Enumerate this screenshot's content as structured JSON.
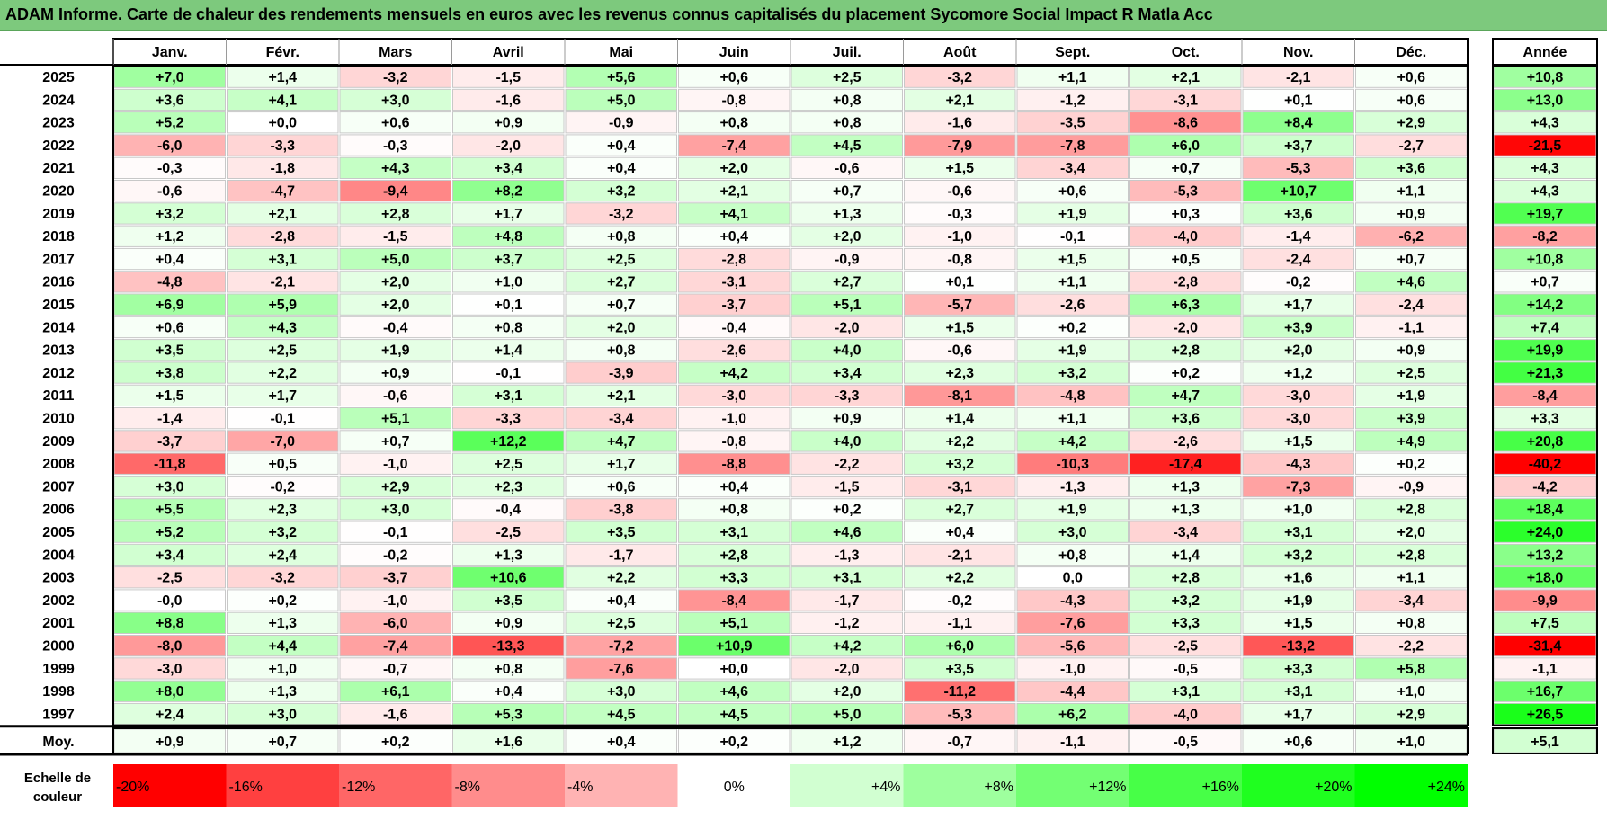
{
  "title": "ADAM Informe. Carte de chaleur des rendements mensuels en euros avec les revenus connus capitalisés du placement Sycomore Social Impact R Matla Acc",
  "chart_data": {
    "type": "heatmap",
    "title": "ADAM Informe. Carte de chaleur des rendements mensuels en euros avec les revenus connus capitalisés du placement Sycomore Social Impact R Matla Acc",
    "columns": [
      "Janv.",
      "Févr.",
      "Mars",
      "Avril",
      "Mai",
      "Juin",
      "Juil.",
      "Août",
      "Sept.",
      "Oct.",
      "Nov.",
      "Déc."
    ],
    "year_column": "Année",
    "rows": [
      {
        "year": "2025",
        "values": [
          "+7,0",
          "+1,4",
          "-3,2",
          "-1,5",
          "+5,6",
          "+0,6",
          "+2,5",
          "-3,2",
          "+1,1",
          "+2,1",
          "-2,1",
          "+0,6"
        ],
        "annual": "+10,8"
      },
      {
        "year": "2024",
        "values": [
          "+3,6",
          "+4,1",
          "+3,0",
          "-1,6",
          "+5,0",
          "-0,8",
          "+0,8",
          "+2,1",
          "-1,2",
          "-3,1",
          "+0,1",
          "+0,6"
        ],
        "annual": "+13,0"
      },
      {
        "year": "2023",
        "values": [
          "+5,2",
          "+0,0",
          "+0,6",
          "+0,9",
          "-0,9",
          "+0,8",
          "+0,8",
          "-1,6",
          "-3,5",
          "-8,6",
          "+8,4",
          "+2,9"
        ],
        "annual": "+4,3"
      },
      {
        "year": "2022",
        "values": [
          "-6,0",
          "-3,3",
          "-0,3",
          "-2,0",
          "+0,4",
          "-7,4",
          "+4,5",
          "-7,9",
          "-7,8",
          "+6,0",
          "+3,7",
          "-2,7"
        ],
        "annual": "-21,5"
      },
      {
        "year": "2021",
        "values": [
          "-0,3",
          "-1,8",
          "+4,3",
          "+3,4",
          "+0,4",
          "+2,0",
          "-0,6",
          "+1,5",
          "-3,4",
          "+0,7",
          "-5,3",
          "+3,6"
        ],
        "annual": "+4,3"
      },
      {
        "year": "2020",
        "values": [
          "-0,6",
          "-4,7",
          "-9,4",
          "+8,2",
          "+3,2",
          "+2,1",
          "+0,7",
          "-0,6",
          "+0,6",
          "-5,3",
          "+10,7",
          "+1,1"
        ],
        "annual": "+4,3"
      },
      {
        "year": "2019",
        "values": [
          "+3,2",
          "+2,1",
          "+2,8",
          "+1,7",
          "-3,2",
          "+4,1",
          "+1,3",
          "-0,3",
          "+1,9",
          "+0,3",
          "+3,6",
          "+0,9"
        ],
        "annual": "+19,7"
      },
      {
        "year": "2018",
        "values": [
          "+1,2",
          "-2,8",
          "-1,5",
          "+4,8",
          "+0,8",
          "+0,4",
          "+2,0",
          "-1,0",
          "-0,1",
          "-4,0",
          "-1,4",
          "-6,2"
        ],
        "annual": "-8,2"
      },
      {
        "year": "2017",
        "values": [
          "+0,4",
          "+3,1",
          "+5,0",
          "+3,7",
          "+2,5",
          "-2,8",
          "-0,9",
          "-0,8",
          "+1,5",
          "+0,5",
          "-2,4",
          "+0,7"
        ],
        "annual": "+10,8"
      },
      {
        "year": "2016",
        "values": [
          "-4,8",
          "-2,1",
          "+2,0",
          "+1,0",
          "+2,7",
          "-3,1",
          "+2,7",
          "+0,1",
          "+1,1",
          "-2,8",
          "-0,2",
          "+4,6"
        ],
        "annual": "+0,7"
      },
      {
        "year": "2015",
        "values": [
          "+6,9",
          "+5,9",
          "+2,0",
          "+0,1",
          "+0,7",
          "-3,7",
          "+5,1",
          "-5,7",
          "-2,6",
          "+6,3",
          "+1,7",
          "-2,4"
        ],
        "annual": "+14,2"
      },
      {
        "year": "2014",
        "values": [
          "+0,6",
          "+4,3",
          "-0,4",
          "+0,8",
          "+2,0",
          "-0,4",
          "-2,0",
          "+1,5",
          "+0,2",
          "-2,0",
          "+3,9",
          "-1,1"
        ],
        "annual": "+7,4"
      },
      {
        "year": "2013",
        "values": [
          "+3,5",
          "+2,5",
          "+1,9",
          "+1,4",
          "+0,8",
          "-2,6",
          "+4,0",
          "-0,6",
          "+1,9",
          "+2,8",
          "+2,0",
          "+0,9"
        ],
        "annual": "+19,9"
      },
      {
        "year": "2012",
        "values": [
          "+3,8",
          "+2,2",
          "+0,9",
          "-0,1",
          "-3,9",
          "+4,2",
          "+3,4",
          "+2,3",
          "+3,2",
          "+0,2",
          "+1,2",
          "+2,5"
        ],
        "annual": "+21,3"
      },
      {
        "year": "2011",
        "values": [
          "+1,5",
          "+1,7",
          "-0,6",
          "+3,1",
          "+2,1",
          "-3,0",
          "-3,3",
          "-8,1",
          "-4,8",
          "+4,7",
          "-3,0",
          "+1,9"
        ],
        "annual": "-8,4"
      },
      {
        "year": "2010",
        "values": [
          "-1,4",
          "-0,1",
          "+5,1",
          "-3,3",
          "-3,4",
          "-1,0",
          "+0,9",
          "+1,4",
          "+1,1",
          "+3,6",
          "-3,0",
          "+3,9"
        ],
        "annual": "+3,3"
      },
      {
        "year": "2009",
        "values": [
          "-3,7",
          "-7,0",
          "+0,7",
          "+12,2",
          "+4,7",
          "-0,8",
          "+4,0",
          "+2,2",
          "+4,2",
          "-2,6",
          "+1,5",
          "+4,9"
        ],
        "annual": "+20,8"
      },
      {
        "year": "2008",
        "values": [
          "-11,8",
          "+0,5",
          "-1,0",
          "+2,5",
          "+1,7",
          "-8,8",
          "-2,2",
          "+3,2",
          "-10,3",
          "-17,4",
          "-4,3",
          "+0,2"
        ],
        "annual": "-40,2"
      },
      {
        "year": "2007",
        "values": [
          "+3,0",
          "-0,2",
          "+2,9",
          "+2,3",
          "+0,6",
          "+0,4",
          "-1,5",
          "-3,1",
          "-1,3",
          "+1,3",
          "-7,3",
          "-0,9"
        ],
        "annual": "-4,2"
      },
      {
        "year": "2006",
        "values": [
          "+5,5",
          "+2,3",
          "+3,0",
          "-0,4",
          "-3,8",
          "+0,8",
          "+0,2",
          "+2,7",
          "+1,9",
          "+1,3",
          "+1,0",
          "+2,8"
        ],
        "annual": "+18,4"
      },
      {
        "year": "2005",
        "values": [
          "+5,2",
          "+3,2",
          "-0,1",
          "-2,5",
          "+3,5",
          "+3,1",
          "+4,6",
          "+0,4",
          "+3,0",
          "-3,4",
          "+3,1",
          "+2,0"
        ],
        "annual": "+24,0"
      },
      {
        "year": "2004",
        "values": [
          "+3,4",
          "+2,4",
          "-0,2",
          "+1,3",
          "-1,7",
          "+2,8",
          "-1,3",
          "-2,1",
          "+0,8",
          "+1,4",
          "+3,2",
          "+2,8"
        ],
        "annual": "+13,2"
      },
      {
        "year": "2003",
        "values": [
          "-2,5",
          "-3,2",
          "-3,7",
          "+10,6",
          "+2,2",
          "+3,3",
          "+3,1",
          "+2,2",
          "0,0",
          "+2,8",
          "+1,6",
          "+1,1"
        ],
        "annual": "+18,0"
      },
      {
        "year": "2002",
        "values": [
          "-0,0",
          "+0,2",
          "-1,0",
          "+3,5",
          "+0,4",
          "-8,4",
          "-1,7",
          "-0,2",
          "-4,3",
          "+3,2",
          "+1,9",
          "-3,4"
        ],
        "annual": "-9,9"
      },
      {
        "year": "2001",
        "values": [
          "+8,8",
          "+1,3",
          "-6,0",
          "+0,9",
          "+2,5",
          "+5,1",
          "-1,2",
          "-1,1",
          "-7,6",
          "+3,3",
          "+1,5",
          "+0,8"
        ],
        "annual": "+7,5"
      },
      {
        "year": "2000",
        "values": [
          "-8,0",
          "+4,4",
          "-7,4",
          "-13,3",
          "-7,2",
          "+10,9",
          "+4,2",
          "+6,0",
          "-5,6",
          "-2,5",
          "-13,2",
          "-2,2"
        ],
        "annual": "-31,4"
      },
      {
        "year": "1999",
        "values": [
          "-3,0",
          "+1,0",
          "-0,7",
          "+0,8",
          "-7,6",
          "+0,0",
          "-2,0",
          "+3,5",
          "-1,0",
          "-0,5",
          "+3,3",
          "+5,8"
        ],
        "annual": "-1,1"
      },
      {
        "year": "1998",
        "values": [
          "+8,0",
          "+1,3",
          "+6,1",
          "+0,4",
          "+3,0",
          "+4,6",
          "+2,0",
          "-11,2",
          "-4,4",
          "+3,1",
          "+3,1",
          "+1,0"
        ],
        "annual": "+16,7"
      },
      {
        "year": "1997",
        "values": [
          "+2,4",
          "+3,0",
          "-1,6",
          "+5,3",
          "+4,5",
          "+4,5",
          "+5,0",
          "-5,3",
          "+6,2",
          "-4,0",
          "+1,7",
          "+2,9"
        ],
        "annual": "+26,5"
      }
    ],
    "average": {
      "label": "Moy.",
      "values": [
        "+0,9",
        "+0,7",
        "+0,2",
        "+1,6",
        "+0,4",
        "+0,2",
        "+1,2",
        "-0,7",
        "-1,1",
        "-0,5",
        "+0,6",
        "+1,0"
      ],
      "annual": "+5,1"
    },
    "color_scale": {
      "label_line1": "Echelle de",
      "label_line2": "couleur",
      "stops": [
        "-20%",
        "-16%",
        "-12%",
        "-8%",
        "-4%",
        "0%",
        "+4%",
        "+8%",
        "+12%",
        "+16%",
        "+20%",
        "+24%"
      ],
      "stop_values": [
        -20,
        -16,
        -12,
        -8,
        -4,
        0,
        4,
        8,
        12,
        16,
        20,
        24
      ],
      "negative_color": "#ff0000",
      "neutral_color": "#ffffff",
      "positive_color": "#00ff00"
    }
  }
}
